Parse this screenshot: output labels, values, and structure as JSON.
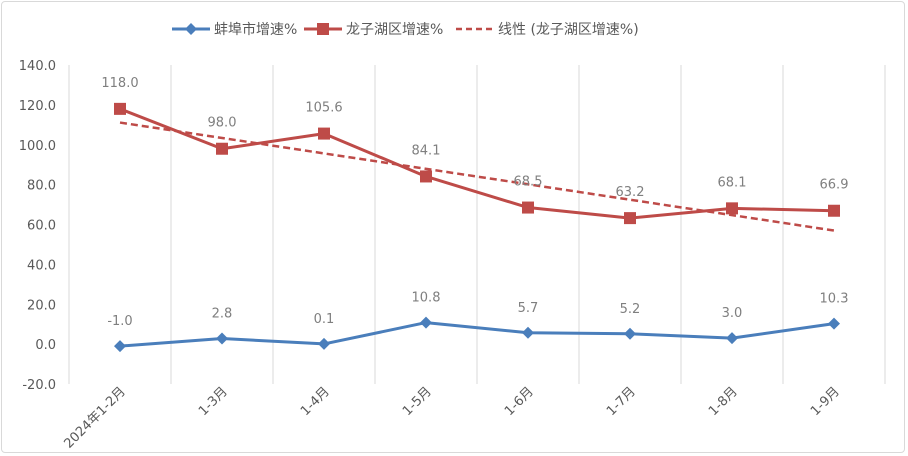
{
  "chart_data": {
    "type": "line",
    "title": "",
    "categories": [
      "2024年1-2月",
      "1-3月",
      "1-4月",
      "1-5月",
      "1-6月",
      "1-7月",
      "1-8月",
      "1-9月"
    ],
    "series": [
      {
        "name": "蚌埠市增速%",
        "values": [
          -1.0,
          2.8,
          0.1,
          10.8,
          5.7,
          5.2,
          3.0,
          10.3
        ],
        "color": "#4a7ebb",
        "marker": "diamond"
      },
      {
        "name": "龙子湖区增速%",
        "values": [
          118.0,
          98.0,
          105.6,
          84.1,
          68.5,
          63.2,
          68.1,
          66.9
        ],
        "color": "#be4b48",
        "marker": "square"
      }
    ],
    "trendline": {
      "name": "线性 (龙子湖区增速%)",
      "type": "linear",
      "of_series": "龙子湖区增速%",
      "color": "#be4b48",
      "style": "dashed"
    },
    "ylim": [
      -20,
      140
    ],
    "yticks": [
      "-20.0",
      "0.0",
      "20.0",
      "40.0",
      "60.0",
      "80.0",
      "100.0",
      "120.0",
      "140.0"
    ],
    "xlabel": "",
    "ylabel": "",
    "grid": "vertical",
    "legend": "top"
  }
}
